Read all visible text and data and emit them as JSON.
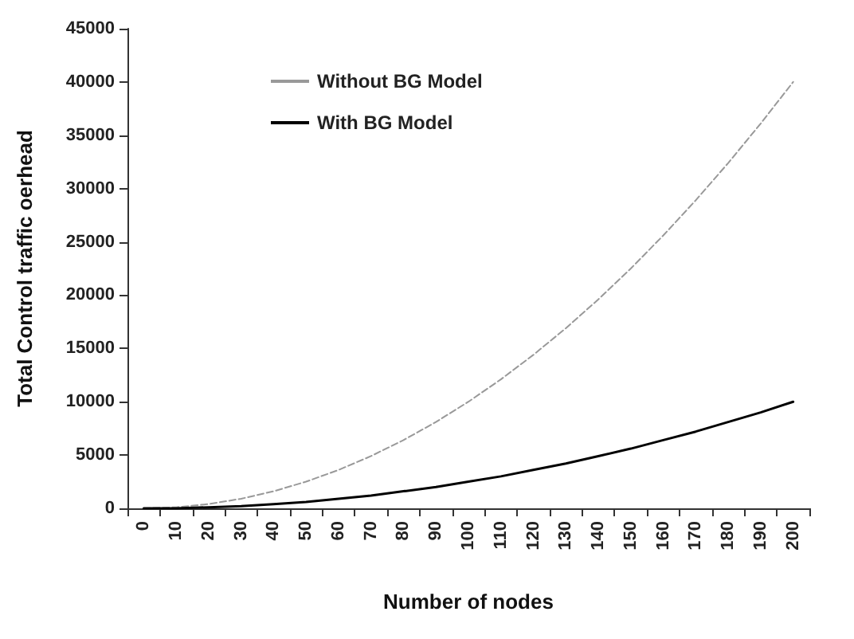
{
  "chart_data": {
    "type": "line",
    "xlabel": "Number of nodes",
    "ylabel": "Total Control traffic oerhead",
    "categories": [
      "0",
      "10",
      "20",
      "30",
      "40",
      "50",
      "60",
      "70",
      "80",
      "90",
      "100",
      "110",
      "120",
      "130",
      "140",
      "150",
      "160",
      "170",
      "180",
      "190",
      "200"
    ],
    "series": [
      {
        "name": "Without BG Model",
        "color": "#999999",
        "line_style": "dashed",
        "values": [
          0,
          100,
          400,
          900,
          1600,
          2500,
          3600,
          4900,
          6400,
          8100,
          10000,
          12100,
          14400,
          16900,
          19600,
          22500,
          25600,
          28900,
          32400,
          36100,
          40000
        ]
      },
      {
        "name": "With BG Model",
        "color": "#000000",
        "line_style": "solid",
        "values": [
          0,
          0,
          100,
          200,
          400,
          600,
          900,
          1200,
          1600,
          2000,
          2500,
          3000,
          3600,
          4200,
          4900,
          5600,
          6400,
          7200,
          8100,
          9000,
          10000
        ]
      }
    ],
    "ylim": [
      0,
      45000
    ],
    "yticks": [
      0,
      5000,
      10000,
      15000,
      20000,
      25000,
      30000,
      35000,
      40000,
      45000
    ],
    "grid": false,
    "legend": "top left",
    "marker": "none"
  }
}
